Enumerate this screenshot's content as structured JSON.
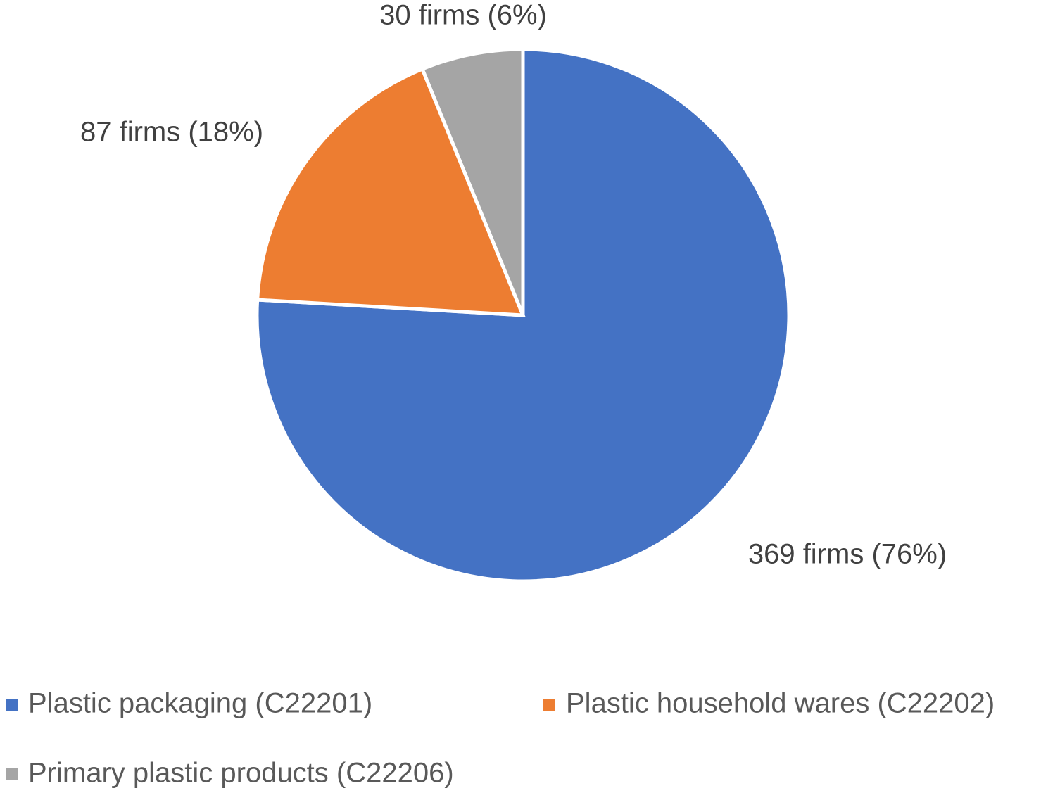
{
  "chart_data": {
    "type": "pie",
    "legend_position": "bottom",
    "slices": [
      {
        "label": "Plastic packaging (C22201)",
        "value": 369,
        "percent": 76,
        "data_label": "369 firms (76%)",
        "color": "#4472C4"
      },
      {
        "label": "Plastic household wares (C22202)",
        "value": 87,
        "percent": 18,
        "data_label": "87 firms (18%)",
        "color": "#ED7D31"
      },
      {
        "label": "Primary plastic products (C22206)",
        "value": 30,
        "percent": 6,
        "data_label": "30 firms (6%)",
        "color": "#A5A5A5"
      }
    ]
  }
}
